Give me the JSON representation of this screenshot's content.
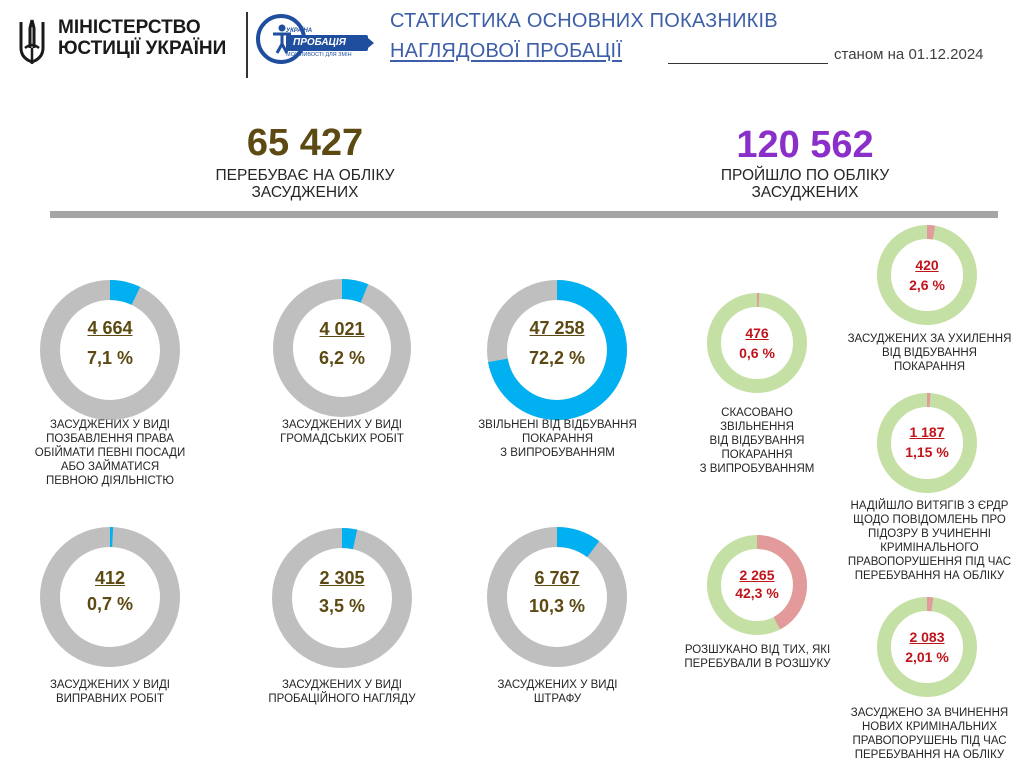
{
  "header": {
    "ministry_name": "МІНІСТЕРСТВО ЮСТИЦІЇ УКРАЇНИ",
    "probation_logo_top": "УКРАЇНА",
    "probation_logo_word": "ПРОБАЦІЯ",
    "probation_logo_tag": "МОЖЛИВОСТІ ДЛЯ ЗМІН",
    "title_line1": "СТАТИСТИКА ОСНОВНИХ ПОКАЗНИКІВ",
    "title_line2": "НАГЛЯДОВОЇ ПРОБАЦІЇ",
    "as_of": "станом на 01.12.2024"
  },
  "totals": {
    "current_value": "65 427",
    "current_label": "ПЕРЕБУВАЄ НА ОБЛІКУ ЗАСУДЖЕНИХ",
    "passed_value": "120 562",
    "passed_label": "ПРОЙШЛО ПО ОБЛІКУ ЗАСУДЖЕНИХ"
  },
  "colors": {
    "gray_track": "#bfbfbf",
    "blue_fill": "#00b0f0",
    "green_track": "#c5e0a5",
    "red_fill": "#e39a9a",
    "brown_text": "#5c4a12",
    "purple_text": "#8a2fc9",
    "red_text": "#c0141b"
  },
  "chart_data": [
    {
      "type": "pie",
      "title": "",
      "group": "ПЕРЕБУВАЄ НА ОБЛІКУ ЗАСУДЖЕНИХ",
      "categories": [
        "ЗАСУДЖЕНИХ У ВИДІ ПОЗБАВЛЕННЯ ПРАВА ОБІЙМАТИ ПЕВНІ ПОСАДИ АБО ЗАЙМАТИСЯ ПЕВНОЮ ДІЯЛЬНІСТЮ",
        "ЗАСУДЖЕНИХ У ВИДІ ГРОМАДСЬКИХ РОБІТ",
        "ЗВІЛЬНЕНІ ВІД ВІДБУВАННЯ ПОКАРАННЯ З ВИПРОБУВАННЯМ",
        "ЗАСУДЖЕНИХ У ВИДІ ВИПРАВНИХ РОБІТ",
        "ЗАСУДЖЕНИХ У ВИДІ ПРОБАЦІЙНОГО НАГЛЯДУ",
        "ЗАСУДЖЕНИХ У ВИДІ ШТРАФУ"
      ],
      "values": [
        4664,
        4021,
        47258,
        412,
        2305,
        6767
      ],
      "percents": [
        7.1,
        6.2,
        72.2,
        0.7,
        3.5,
        10.3
      ]
    },
    {
      "type": "pie",
      "title": "",
      "group": "ПРОЙШЛО ПО ОБЛІКУ ЗАСУДЖЕНИХ",
      "categories": [
        "СКАСОВАНО ЗВІЛЬНЕННЯ ВІД ВІДБУВАННЯ ПОКАРАННЯ З ВИПРОБУВАННЯМ",
        "РОЗШУКАНО ВІД ТИХ, ЯКІ ПЕРЕБУВАЛИ В РОЗШУКУ",
        "ЗАСУДЖЕНИХ ЗА УХИЛЕННЯ ВІД ВІДБУВАННЯ ПОКАРАННЯ",
        "НАДІЙШЛО ВИТЯГІВ З ЄРДР ЩОДО ПОВІДОМЛЕНЬ ПРО ПІДОЗРУ В УЧИНЕННІ КРИМІНАЛЬНОГО ПРАВОПОРУШЕННЯ ПІД ЧАС ПЕРЕБУВАННЯ НА ОБЛІКУ",
        "ЗАСУДЖЕНО ЗА ВЧИНЕННЯ НОВИХ КРИМІНАЛЬНИХ ПРАВОПОРУШЕНЬ ПІД ЧАС ПЕРЕБУВАННЯ НА ОБЛІКУ"
      ],
      "values": [
        476,
        2265,
        420,
        1187,
        2083
      ],
      "percents": [
        0.6,
        42.3,
        2.6,
        1.15,
        2.01
      ]
    }
  ],
  "donuts": [
    {
      "value": "4 664",
      "percent": "7,1 %",
      "share": 0.071,
      "scheme": "g",
      "caption": "ЗАСУДЖЕНИХ У ВИДІ\nПОЗБАВЛЕННЯ ПРАВА\nОБІЙМАТИ ПЕВНІ ПОСАДИ\nАБО ЗАЙМАТИСЯ\nПЕВНОЮ ДІЯЛЬНІСТЮ"
    },
    {
      "value": "4 021",
      "percent": "6,2 %",
      "share": 0.062,
      "scheme": "g",
      "caption": "ЗАСУДЖЕНИХ У ВИДІ\nГРОМАДСЬКИХ РОБІТ"
    },
    {
      "value": "47 258",
      "percent": "72,2 %",
      "share": 0.722,
      "scheme": "g",
      "caption": "ЗВІЛЬНЕНІ ВІД ВІДБУВАННЯ\nПОКАРАННЯ\nЗ ВИПРОБУВАННЯМ"
    },
    {
      "value": "412",
      "percent": "0,7 %",
      "share": 0.007,
      "scheme": "g",
      "caption": "ЗАСУДЖЕНИХ У ВИДІ\nВИПРАВНИХ РОБІТ"
    },
    {
      "value": "2 305",
      "percent": "3,5 %",
      "share": 0.035,
      "scheme": "g",
      "caption": "ЗАСУДЖЕНИХ У ВИДІ\nПРОБАЦІЙНОГО НАГЛЯДУ"
    },
    {
      "value": "6 767",
      "percent": "10,3 %",
      "share": 0.103,
      "scheme": "g",
      "caption": "ЗАСУДЖЕНИХ У ВИДІ\nШТРАФУ"
    },
    {
      "value": "476",
      "percent": "0,6 %",
      "share": 0.006,
      "scheme": "r",
      "caption": "СКАСОВАНО\nЗВІЛЬНЕННЯ\nВІД ВІДБУВАННЯ\nПОКАРАННЯ\nЗ ВИПРОБУВАННЯМ"
    },
    {
      "value": "2 265",
      "percent": "42,3 %",
      "share": 0.423,
      "scheme": "r",
      "caption": "РОЗШУКАНО ВІД ТИХ, ЯКІ\nПЕРЕБУВАЛИ В РОЗШУКУ"
    },
    {
      "value": "420",
      "percent": "2,6 %",
      "share": 0.026,
      "scheme": "r",
      "caption": "ЗАСУДЖЕНИХ ЗА УХИЛЕННЯ\nВІД ВІДБУВАННЯ\nПОКАРАННЯ"
    },
    {
      "value": "1 187",
      "percent": "1,15 %",
      "share": 0.0115,
      "scheme": "r",
      "caption": "НАДІЙШЛО ВИТЯГІВ З ЄРДР\nЩОДО ПОВІДОМЛЕНЬ ПРО\nПІДОЗРУ В УЧИНЕННІ\nКРИМІНАЛЬНОГО\nПРАВОПОРУШЕННЯ ПІД ЧАС\nПЕРЕБУВАННЯ НА ОБЛІКУ"
    },
    {
      "value": "2 083",
      "percent": "2,01 %",
      "share": 0.0201,
      "scheme": "r",
      "caption": "ЗАСУДЖЕНО ЗА ВЧИНЕННЯ\nНОВИХ КРИМІНАЛЬНИХ\nПРАВОПОРУШЕНЬ ПІД ЧАС\nПЕРЕБУВАННЯ НА ОБЛІКУ"
    }
  ]
}
